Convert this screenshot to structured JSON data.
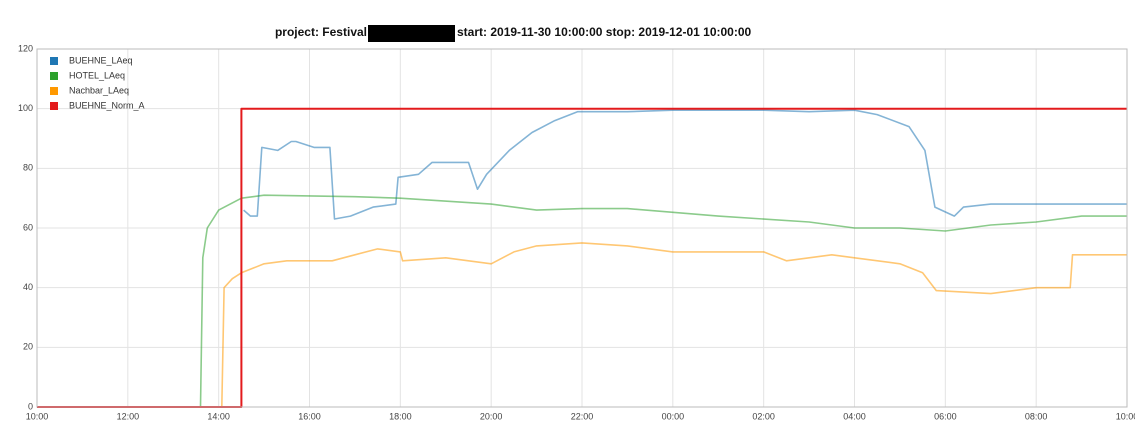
{
  "chart_data": {
    "type": "line",
    "title": [
      "project: Festival",
      "start: 2019-11-30 10:00:00 stop: 2019-12-01 10:00:00"
    ],
    "xlim": [
      0,
      24
    ],
    "xticks": [
      {
        "value": 0,
        "label": "10:00"
      },
      {
        "value": 2,
        "label": "12:00"
      },
      {
        "value": 4,
        "label": "14:00"
      },
      {
        "value": 6,
        "label": "16:00"
      },
      {
        "value": 8,
        "label": "18:00"
      },
      {
        "value": 10,
        "label": "20:00"
      },
      {
        "value": 12,
        "label": "22:00"
      },
      {
        "value": 14,
        "label": "00:00"
      },
      {
        "value": 16,
        "label": "02:00"
      },
      {
        "value": 18,
        "label": "04:00"
      },
      {
        "value": 20,
        "label": "06:00"
      },
      {
        "value": 22,
        "label": "08:00"
      },
      {
        "value": 24,
        "label": "10:00"
      }
    ],
    "ylim": [
      0,
      120
    ],
    "yticks": [
      0,
      20,
      40,
      60,
      80,
      100,
      120
    ],
    "grid": true,
    "legend": "top-left",
    "series": [
      {
        "name": "BUEHNE_LAeq",
        "color": "#1f77b4",
        "x": [
          4.55,
          4.7,
          4.85,
          4.95,
          5.3,
          5.6,
          5.7,
          6.1,
          6.45,
          6.55,
          6.9,
          7.4,
          7.9,
          7.95,
          8.4,
          8.7,
          9.5,
          9.7,
          9.9,
          10.4,
          10.9,
          11.4,
          11.9,
          13,
          14,
          15,
          16,
          17,
          18,
          18.5,
          19.2,
          19.55,
          19.77,
          20.2,
          20.4,
          21,
          24
        ],
        "values": [
          66,
          64,
          64,
          87,
          86,
          89,
          89,
          87,
          87,
          63,
          64,
          67,
          68,
          77,
          78,
          82,
          82,
          73,
          78,
          86,
          92,
          96,
          99,
          99,
          99.5,
          99.5,
          99.5,
          99,
          99.5,
          98,
          94,
          86,
          67,
          64,
          67,
          68,
          68
        ]
      },
      {
        "name": "HOTEL_LAeq",
        "color": "#2ca02c",
        "x": [
          3.6,
          3.65,
          3.75,
          4,
          4.5,
          5,
          7,
          8,
          10,
          11,
          12,
          13,
          15,
          17,
          18,
          19,
          20,
          21,
          22,
          23,
          24
        ],
        "values": [
          0,
          50,
          60,
          66,
          70,
          71,
          70.5,
          70,
          68,
          66,
          66.5,
          66.5,
          64,
          62,
          60,
          60,
          59,
          61,
          62,
          64,
          64
        ]
      },
      {
        "name": "Nachbar_LAeq",
        "color": "#ff9900",
        "x": [
          4.07,
          4.12,
          4.3,
          4.5,
          5,
          5.5,
          6.5,
          7,
          7.5,
          8,
          8.05,
          9,
          10,
          10.5,
          11,
          12,
          13,
          14,
          15,
          16,
          16.5,
          17.5,
          18,
          19,
          19.5,
          19.8,
          21,
          22,
          22.75,
          22.8,
          24
        ],
        "values": [
          0,
          40,
          43,
          45,
          48,
          49,
          49,
          51,
          53,
          52,
          49,
          50,
          48,
          52,
          54,
          55,
          54,
          52,
          52,
          52,
          49,
          51,
          50,
          48,
          45,
          39,
          38,
          40,
          40,
          51,
          51
        ]
      },
      {
        "name": "BUEHNE_Norm_A",
        "color": "#e31a1c",
        "x": [
          0,
          4.5,
          4.5,
          24
        ],
        "values": [
          0,
          0,
          100,
          100
        ]
      }
    ]
  }
}
